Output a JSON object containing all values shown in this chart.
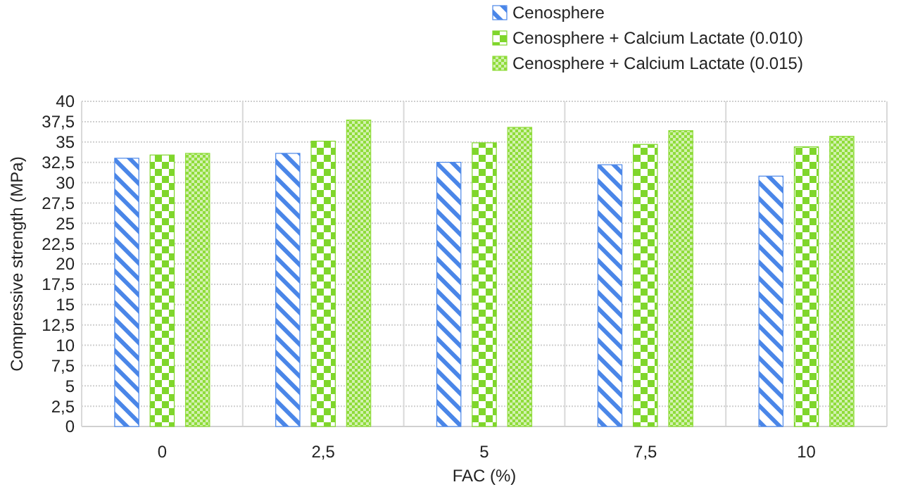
{
  "chart_data": {
    "type": "bar",
    "xlabel": "FAC (%)",
    "ylabel": "Compressive strength (MPa)",
    "categories": [
      "0",
      "2,5",
      "5",
      "7,5",
      "10"
    ],
    "series": [
      {
        "name": "Cenosphere",
        "color": "#4a86e8",
        "values": [
          33.0,
          33.6,
          32.5,
          32.2,
          30.8
        ]
      },
      {
        "name": "Cenosphere + Calcium Lactate (0.010)",
        "color": "#7fd62b",
        "values": [
          33.4,
          35.1,
          34.9,
          34.7,
          34.4
        ]
      },
      {
        "name": "Cenosphere  + Calcium Lactate (0.015)",
        "color": "#8fdc3a",
        "values": [
          33.6,
          37.7,
          36.8,
          36.4,
          35.7
        ]
      }
    ],
    "ylim": [
      0,
      40
    ],
    "yticks": [
      0,
      {
        "value": 2.5,
        "label": "2,5"
      },
      5,
      {
        "value": 7.5,
        "label": "7,5"
      },
      10,
      {
        "value": 12.5,
        "label": "12,5"
      },
      15,
      {
        "value": 17.5,
        "label": "17,5"
      },
      20,
      {
        "value": 22.5,
        "label": "22,5"
      },
      25,
      {
        "value": 27.5,
        "label": "27,5"
      },
      30,
      {
        "value": 32.5,
        "label": "32,5"
      },
      35,
      {
        "value": 37.5,
        "label": "37,5"
      },
      40
    ],
    "grid": true,
    "legend": "top right"
  }
}
